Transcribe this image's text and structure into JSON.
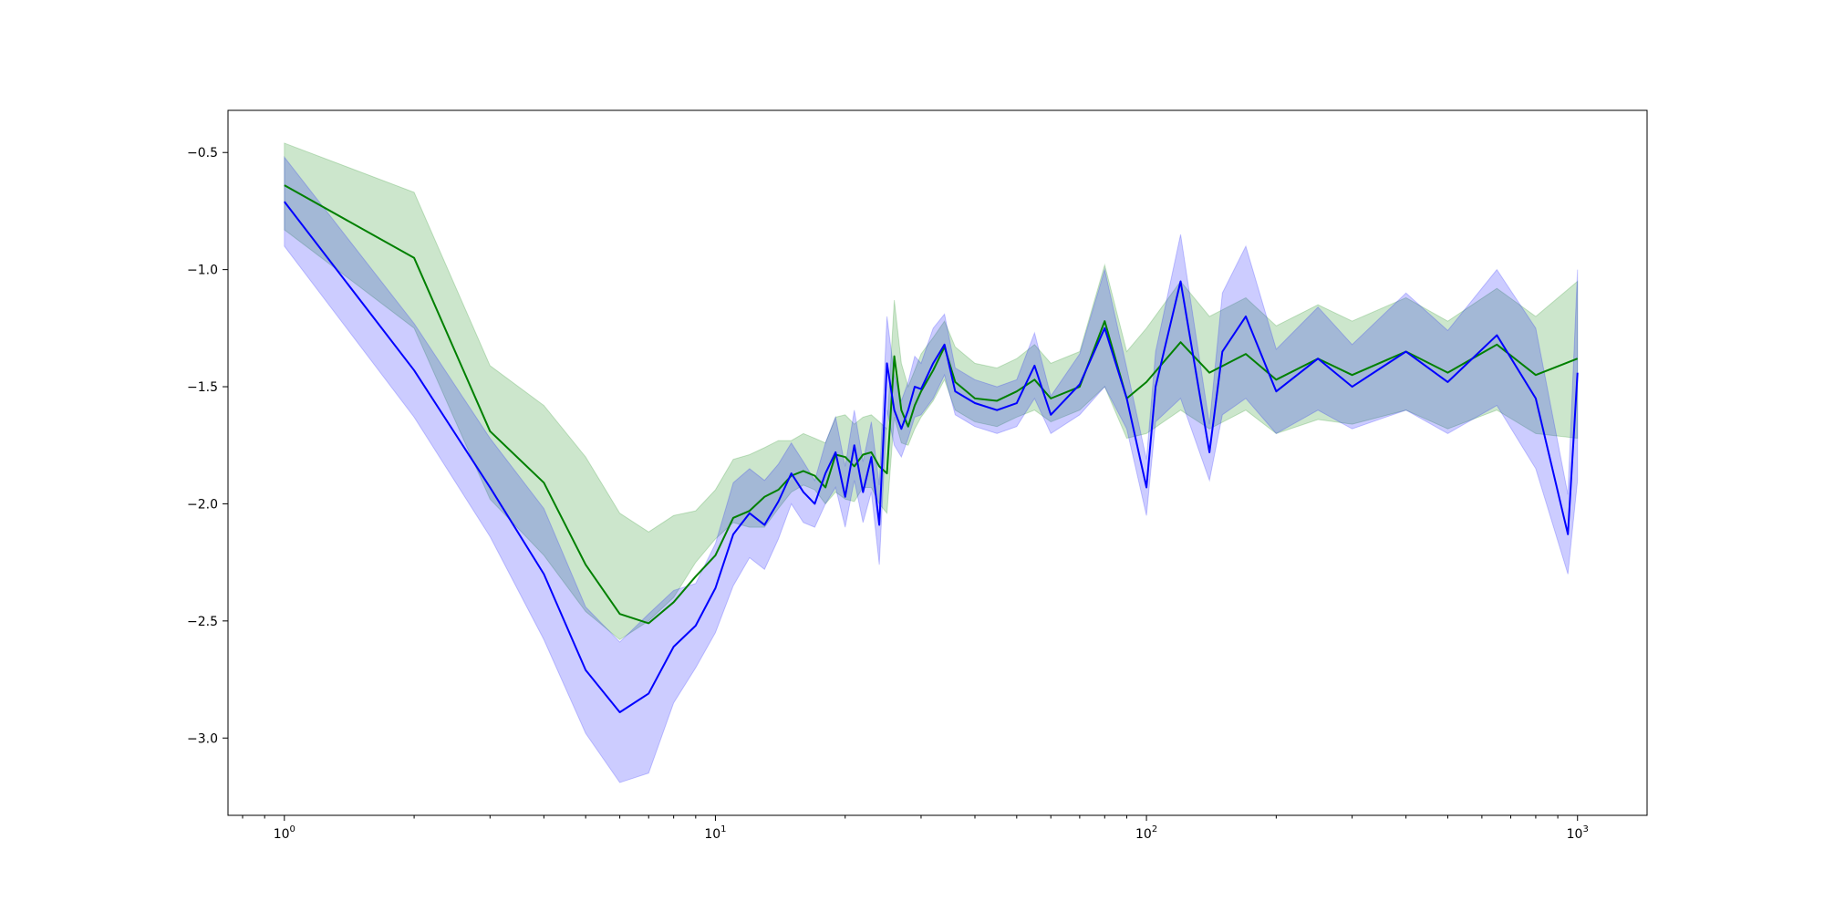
{
  "chart_data": {
    "type": "line",
    "title": "",
    "xlabel": "",
    "ylabel": "",
    "xscale": "log",
    "xlim": [
      0.74,
      1450
    ],
    "ylim": [
      -3.33,
      -0.32
    ],
    "grid": false,
    "legend": "none",
    "x_ticks": [
      {
        "base": "10",
        "exp": "0",
        "value": 1
      },
      {
        "base": "10",
        "exp": "1",
        "value": 10
      },
      {
        "base": "10",
        "exp": "2",
        "value": 100
      },
      {
        "base": "10",
        "exp": "3",
        "value": 1000
      }
    ],
    "y_ticks": [
      {
        "label": "−0.5",
        "value": -0.5
      },
      {
        "label": "−1.0",
        "value": -1.0
      },
      {
        "label": "−1.5",
        "value": -1.5
      },
      {
        "label": "−2.0",
        "value": -2.0
      },
      {
        "label": "−2.5",
        "value": -2.5
      },
      {
        "label": "−3.0",
        "value": -3.0
      }
    ],
    "series": [
      {
        "color": "#008000",
        "band_color": "#008000",
        "band_opacity": 0.2,
        "x": [
          1,
          2,
          3,
          4,
          5,
          6,
          7,
          8,
          9,
          10,
          11,
          12,
          13,
          14,
          15,
          16,
          17,
          18,
          19,
          20,
          21,
          22,
          23,
          24,
          25,
          26,
          27,
          28,
          29,
          30,
          32,
          34,
          36,
          40,
          45,
          50,
          55,
          60,
          70,
          80,
          90,
          100,
          120,
          140,
          170,
          200,
          250,
          300,
          400,
          500,
          650,
          800,
          1000
        ],
        "y": [
          -0.64,
          -0.95,
          -1.69,
          -1.91,
          -2.26,
          -2.47,
          -2.51,
          -2.42,
          -2.31,
          -2.22,
          -2.06,
          -2.03,
          -1.97,
          -1.94,
          -1.88,
          -1.86,
          -1.88,
          -1.93,
          -1.79,
          -1.8,
          -1.84,
          -1.79,
          -1.78,
          -1.84,
          -1.87,
          -1.37,
          -1.6,
          -1.67,
          -1.58,
          -1.52,
          -1.43,
          -1.33,
          -1.48,
          -1.55,
          -1.56,
          -1.52,
          -1.47,
          -1.55,
          -1.5,
          -1.22,
          -1.55,
          -1.48,
          -1.31,
          -1.44,
          -1.36,
          -1.47,
          -1.38,
          -1.45,
          -1.35,
          -1.44,
          -1.32,
          -1.45,
          -1.38
        ],
        "lower": [
          -0.83,
          -1.25,
          -1.98,
          -2.22,
          -2.46,
          -2.58,
          -2.5,
          -2.4,
          -2.25,
          -2.15,
          -2.08,
          -2.1,
          -2.1,
          -2.02,
          -1.95,
          -1.92,
          -1.94,
          -2.0,
          -1.95,
          -1.98,
          -1.99,
          -1.93,
          -1.93,
          -2.0,
          -2.04,
          -1.63,
          -1.74,
          -1.75,
          -1.68,
          -1.63,
          -1.56,
          -1.47,
          -1.6,
          -1.65,
          -1.67,
          -1.63,
          -1.6,
          -1.65,
          -1.6,
          -1.5,
          -1.72,
          -1.7,
          -1.6,
          -1.68,
          -1.6,
          -1.7,
          -1.64,
          -1.66,
          -1.6,
          -1.68,
          -1.6,
          -1.7,
          -1.72
        ],
        "upper": [
          -0.46,
          -0.67,
          -1.41,
          -1.58,
          -1.8,
          -2.04,
          -2.12,
          -2.05,
          -2.03,
          -1.94,
          -1.81,
          -1.79,
          -1.76,
          -1.73,
          -1.73,
          -1.7,
          -1.72,
          -1.74,
          -1.63,
          -1.62,
          -1.66,
          -1.63,
          -1.62,
          -1.65,
          -1.68,
          -1.13,
          -1.4,
          -1.5,
          -1.43,
          -1.36,
          -1.29,
          -1.22,
          -1.33,
          -1.4,
          -1.42,
          -1.38,
          -1.32,
          -1.4,
          -1.35,
          -0.98,
          -1.35,
          -1.25,
          -1.05,
          -1.2,
          -1.12,
          -1.24,
          -1.15,
          -1.22,
          -1.12,
          -1.22,
          -1.08,
          -1.2,
          -1.05
        ]
      },
      {
        "color": "#0000ff",
        "band_color": "#0000ff",
        "band_opacity": 0.2,
        "x": [
          1,
          2,
          3,
          4,
          5,
          6,
          7,
          8,
          9,
          10,
          11,
          12,
          13,
          14,
          15,
          16,
          17,
          18,
          19,
          20,
          21,
          22,
          23,
          24,
          25,
          26,
          27,
          28,
          29,
          30,
          32,
          34,
          36,
          40,
          45,
          50,
          55,
          60,
          70,
          80,
          90,
          100,
          105,
          120,
          140,
          150,
          170,
          200,
          250,
          300,
          400,
          500,
          650,
          800,
          950,
          1000
        ],
        "y": [
          -0.71,
          -1.43,
          -1.93,
          -2.3,
          -2.71,
          -2.89,
          -2.81,
          -2.61,
          -2.52,
          -2.36,
          -2.13,
          -2.04,
          -2.09,
          -1.99,
          -1.87,
          -1.95,
          -2.0,
          -1.87,
          -1.78,
          -1.97,
          -1.75,
          -1.95,
          -1.8,
          -2.09,
          -1.4,
          -1.6,
          -1.68,
          -1.6,
          -1.5,
          -1.51,
          -1.4,
          -1.32,
          -1.52,
          -1.57,
          -1.6,
          -1.57,
          -1.41,
          -1.62,
          -1.49,
          -1.25,
          -1.55,
          -1.93,
          -1.5,
          -1.05,
          -1.78,
          -1.35,
          -1.2,
          -1.52,
          -1.38,
          -1.5,
          -1.35,
          -1.48,
          -1.28,
          -1.55,
          -2.13,
          -1.44
        ],
        "lower": [
          -0.9,
          -1.63,
          -2.14,
          -2.58,
          -2.98,
          -3.19,
          -3.15,
          -2.85,
          -2.7,
          -2.55,
          -2.35,
          -2.23,
          -2.28,
          -2.15,
          -2.0,
          -2.08,
          -2.1,
          -2.0,
          -1.93,
          -2.1,
          -1.9,
          -2.08,
          -1.95,
          -2.26,
          -1.6,
          -1.75,
          -1.8,
          -1.72,
          -1.63,
          -1.62,
          -1.55,
          -1.45,
          -1.62,
          -1.67,
          -1.7,
          -1.67,
          -1.55,
          -1.7,
          -1.62,
          -1.5,
          -1.68,
          -2.05,
          -1.65,
          -1.55,
          -1.9,
          -1.62,
          -1.55,
          -1.7,
          -1.6,
          -1.68,
          -1.6,
          -1.7,
          -1.58,
          -1.85,
          -2.3,
          -1.9
        ],
        "upper": [
          -0.52,
          -1.23,
          -1.72,
          -2.02,
          -2.44,
          -2.59,
          -2.47,
          -2.37,
          -2.34,
          -2.17,
          -1.91,
          -1.85,
          -1.9,
          -1.83,
          -1.74,
          -1.82,
          -1.9,
          -1.74,
          -1.63,
          -1.84,
          -1.6,
          -1.82,
          -1.65,
          -1.92,
          -1.2,
          -1.45,
          -1.56,
          -1.48,
          -1.37,
          -1.4,
          -1.25,
          -1.19,
          -1.42,
          -1.47,
          -1.5,
          -1.47,
          -1.27,
          -1.54,
          -1.36,
          -1.0,
          -1.42,
          -1.81,
          -1.35,
          -0.85,
          -1.66,
          -1.1,
          -0.9,
          -1.34,
          -1.16,
          -1.32,
          -1.1,
          -1.26,
          -1.0,
          -1.25,
          -1.96,
          -1.0
        ]
      }
    ]
  }
}
